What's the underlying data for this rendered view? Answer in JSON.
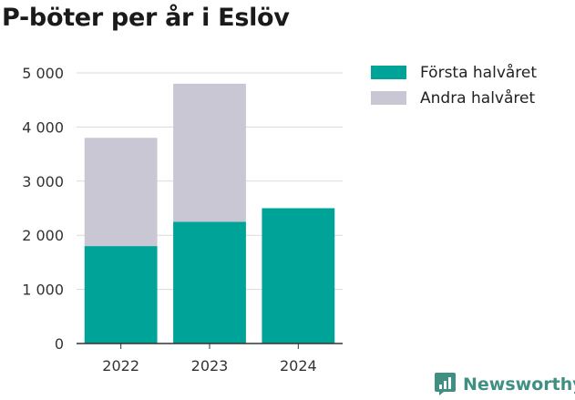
{
  "title": "P-böter per år i Eslöv",
  "brand": {
    "name": "Newsworthy",
    "icon": "newsworthy-logo-icon",
    "color": "#3f8f82"
  },
  "chart_data": {
    "type": "bar",
    "stacked": true,
    "title": "P-böter per år i Eslöv",
    "xlabel": "",
    "ylabel": "",
    "categories": [
      "2022",
      "2023",
      "2024"
    ],
    "series": [
      {
        "name": "Första halvåret",
        "color": "#00a398",
        "values": [
          1800,
          2250,
          2500
        ]
      },
      {
        "name": "Andra halvåret",
        "color": "#c8c7d3",
        "values": [
          2000,
          2550,
          null
        ]
      }
    ],
    "ylim": [
      0,
      5000
    ],
    "yticks": [
      0,
      1000,
      2000,
      3000,
      4000,
      5000
    ],
    "ytick_labels": [
      "0",
      "1 000",
      "2 000",
      "3 000",
      "4 000",
      "5 000"
    ],
    "grid": true,
    "legend_position": "top-right"
  }
}
